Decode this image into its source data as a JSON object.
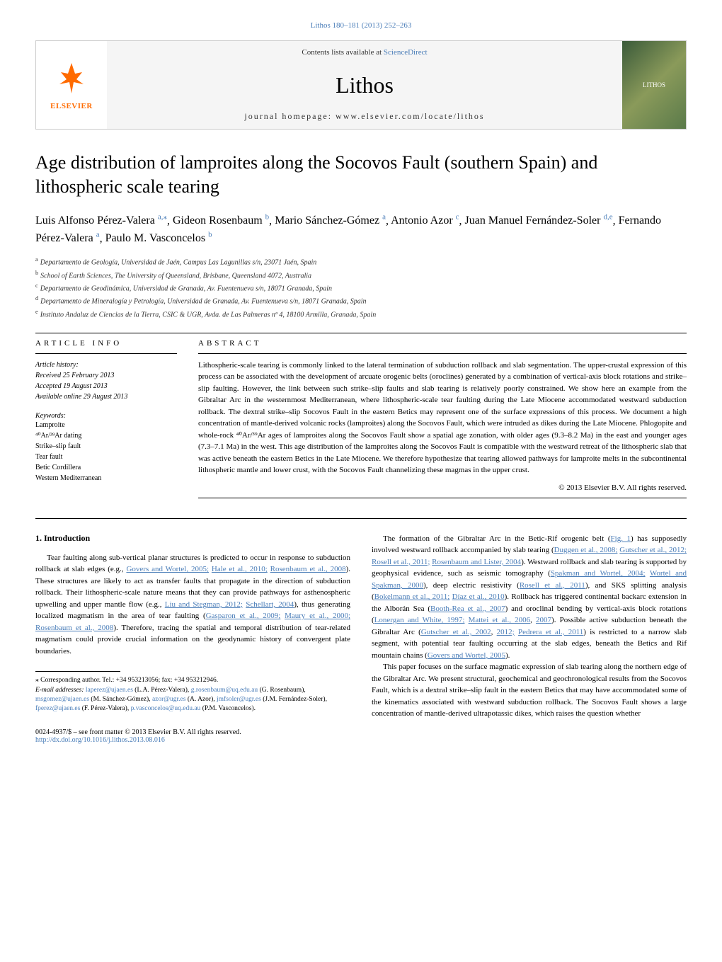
{
  "journal_ref": {
    "text": "Lithos 180–181 (2013) 252–263",
    "link_color": "#4a7db8"
  },
  "header": {
    "contents_prefix": "Contents lists available at ",
    "contents_link": "ScienceDirect",
    "journal_name": "Lithos",
    "homepage": "journal homepage: www.elsevier.com/locate/lithos",
    "publisher": "ELSEVIER",
    "cover_label": "LITHOS"
  },
  "title": "Age distribution of lamproites along the Socovos Fault (southern Spain) and lithospheric scale tearing",
  "authors": [
    {
      "name": "Luis Alfonso Pérez-Valera",
      "aff": "a,",
      "star": true
    },
    {
      "name": "Gideon Rosenbaum",
      "aff": "b"
    },
    {
      "name": "Mario Sánchez-Gómez",
      "aff": "a"
    },
    {
      "name": "Antonio Azor",
      "aff": "c"
    },
    {
      "name": "Juan Manuel Fernández-Soler",
      "aff": "d,e"
    },
    {
      "name": "Fernando Pérez-Valera",
      "aff": "a"
    },
    {
      "name": "Paulo M. Vasconcelos",
      "aff": "b"
    }
  ],
  "affiliations": [
    {
      "sup": "a",
      "text": "Departamento de Geología, Universidad de Jaén, Campus Las Lagunillas s/n, 23071 Jaén, Spain"
    },
    {
      "sup": "b",
      "text": "School of Earth Sciences, The University of Queensland, Brisbane, Queensland 4072, Australia"
    },
    {
      "sup": "c",
      "text": "Departamento de Geodinámica, Universidad de Granada, Av. Fuentenueva s/n, 18071 Granada, Spain"
    },
    {
      "sup": "d",
      "text": "Departamento de Mineralogía y Petrología, Universidad de Granada, Av. Fuentenueva s/n, 18071 Granada, Spain"
    },
    {
      "sup": "e",
      "text": "Instituto Andaluz de Ciencias de la Tierra, CSIC & UGR, Avda. de Las Palmeras nº 4, 18100 Armilla, Granada, Spain"
    }
  ],
  "article_info": {
    "head": "ARTICLE INFO",
    "history_head": "Article history:",
    "received": "Received 25 February 2013",
    "accepted": "Accepted 19 August 2013",
    "online": "Available online 29 August 2013",
    "keywords_head": "Keywords:",
    "keywords": [
      "Lamproite",
      "⁴⁰Ar/³⁹Ar dating",
      "Strike–slip fault",
      "Tear fault",
      "Betic Cordillera",
      "Western Mediterranean"
    ]
  },
  "abstract": {
    "head": "ABSTRACT",
    "text": "Lithospheric-scale tearing is commonly linked to the lateral termination of subduction rollback and slab segmentation. The upper-crustal expression of this process can be associated with the development of arcuate orogenic belts (oroclines) generated by a combination of vertical-axis block rotations and strike–slip faulting. However, the link between such strike–slip faults and slab tearing is relatively poorly constrained. We show here an example from the Gibraltar Arc in the westernmost Mediterranean, where lithospheric-scale tear faulting during the Late Miocene accommodated westward subduction rollback. The dextral strike–slip Socovos Fault in the eastern Betics may represent one of the surface expressions of this process. We document a high concentration of mantle-derived volcanic rocks (lamproites) along the Socovos Fault, which were intruded as dikes during the Late Miocene. Phlogopite and whole-rock ⁴⁰Ar/³⁹Ar ages of lamproites along the Socovos Fault show a spatial age zonation, with older ages (9.3–8.2 Ma) in the east and younger ages (7.3–7.1 Ma) in the west. This age distribution of the lamproites along the Socovos Fault is compatible with the westward retreat of the lithospheric slab that was active beneath the eastern Betics in the Late Miocene. We therefore hypothesize that tearing allowed pathways for lamproite melts in the subcontinental lithospheric mantle and lower crust, with the Socovos Fault channelizing these magmas in the upper crust.",
    "copyright": "© 2013 Elsevier B.V. All rights reserved."
  },
  "introduction": {
    "head": "1. Introduction",
    "para1_parts": [
      {
        "t": "Tear faulting along sub-vertical planar structures is predicted to occur in response to subduction rollback at slab edges (e.g., "
      },
      {
        "c": "Govers and Wortel, 2005;"
      },
      {
        "t": " "
      },
      {
        "c": "Hale et al., 2010;"
      },
      {
        "t": " "
      },
      {
        "c": "Rosenbaum et al., 2008"
      },
      {
        "t": "). These structures are likely to act as transfer faults that propagate in the direction of subduction rollback. Their lithospheric-scale nature means that they can provide pathways for asthenospheric upwelling and upper mantle flow (e.g., "
      },
      {
        "c": "Liu and Stegman, 2012;"
      },
      {
        "t": " "
      },
      {
        "c": "Schellart, 2004"
      },
      {
        "t": "), thus generating localized magmatism in the area of tear faulting ("
      },
      {
        "c": "Gasparon et al., 2009;"
      },
      {
        "t": " "
      },
      {
        "c": "Maury et al., 2000;"
      },
      {
        "t": " "
      },
      {
        "c": "Rosenbaum et al., 2008"
      },
      {
        "t": "). Therefore, tracing the spatial and temporal distribution of tear-related magmatism could provide crucial information on the geodynamic history of convergent plate boundaries."
      }
    ],
    "para2_parts": [
      {
        "t": "The formation of the Gibraltar Arc in the Betic-Rif orogenic belt ("
      },
      {
        "c": "Fig. 1"
      },
      {
        "t": ") has supposedly involved westward rollback accompanied by slab tearing ("
      },
      {
        "c": "Duggen et al., 2008;"
      },
      {
        "t": " "
      },
      {
        "c": "Gutscher et al., 2012;"
      },
      {
        "t": " "
      },
      {
        "c": "Rosell et al., 2011;"
      },
      {
        "t": " "
      },
      {
        "c": "Rosenbaum and Lister, 2004"
      },
      {
        "t": "). Westward rollback and slab tearing is supported by geophysical evidence, such as seismic tomography ("
      },
      {
        "c": "Spakman and Wortel, 2004;"
      },
      {
        "t": " "
      },
      {
        "c": "Wortel and Spakman, 2000"
      },
      {
        "t": "), deep electric resistivity ("
      },
      {
        "c": "Rosell et al., 2011"
      },
      {
        "t": "), and SKS splitting analysis ("
      },
      {
        "c": "Bokelmann et al., 2011;"
      },
      {
        "t": " "
      },
      {
        "c": "Díaz et al., 2010"
      },
      {
        "t": "). Rollback has triggered continental backarc extension in the Alborán Sea ("
      },
      {
        "c": "Booth-Rea et al., 2007"
      },
      {
        "t": ") and oroclinal bending by vertical-axis block rotations ("
      },
      {
        "c": "Lonergan and White, 1997;"
      },
      {
        "t": " "
      },
      {
        "c": "Mattei et al., 2006"
      },
      {
        "t": ", "
      },
      {
        "c": "2007"
      },
      {
        "t": "). Possible active subduction beneath the Gibraltar Arc ("
      },
      {
        "c": "Gutscher et al., 2002"
      },
      {
        "t": ", "
      },
      {
        "c": "2012;"
      },
      {
        "t": " "
      },
      {
        "c": "Pedrera et al., 2011"
      },
      {
        "t": ") is restricted to a narrow slab segment, with potential tear faulting occurring at the slab edges, beneath the Betics and Rif mountain chains ("
      },
      {
        "c": "Govers and Wortel, 2005"
      },
      {
        "t": ")."
      }
    ],
    "para3": "This paper focuses on the surface magmatic expression of slab tearing along the northern edge of the Gibraltar Arc. We present structural, geochemical and geochronological results from the Socovos Fault, which is a dextral strike–slip fault in the eastern Betics that may have accommodated some of the kinematics associated with westward subduction rollback. The Socovos Fault shows a large concentration of mantle-derived ultrapotassic dikes, which raises the question whether"
  },
  "footnotes": {
    "corresponding": "⁎ Corresponding author. Tel.: +34 953213056; fax: +34 953212946.",
    "emails_label": "E-mail addresses: ",
    "emails": [
      {
        "email": "laperez@ujaen.es",
        "name": "(L.A. Pérez-Valera)"
      },
      {
        "email": "g.rosenbaum@uq.edu.au",
        "name": "(G. Rosenbaum)"
      },
      {
        "email": "msgomez@ujaen.es",
        "name": "(M. Sánchez-Gómez)"
      },
      {
        "email": "azor@ugr.es",
        "name": "(A. Azor)"
      },
      {
        "email": "jmfsoler@ugr.es",
        "name": "(J.M. Fernández-Soler)"
      },
      {
        "email": "fperez@ujaen.es",
        "name": "(F. Pérez-Valera)"
      },
      {
        "email": "p.vasconcelos@uq.edu.au",
        "name": "(P.M. Vasconcelos)"
      }
    ]
  },
  "footer": {
    "line1": "0024-4937/$ – see front matter © 2013 Elsevier B.V. All rights reserved.",
    "doi": "http://dx.doi.org/10.1016/j.lithos.2013.08.016"
  },
  "colors": {
    "link": "#4a7db8",
    "elsevier_orange": "#ff6b00"
  }
}
